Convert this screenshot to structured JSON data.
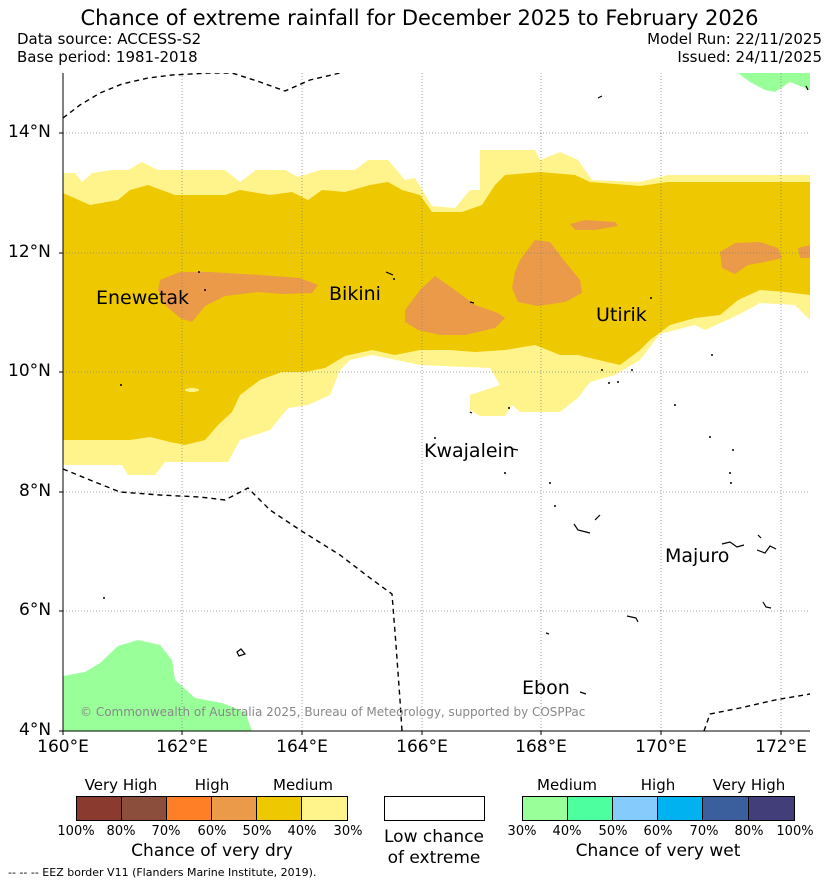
{
  "header": {
    "title": "Chance of extreme rainfall for December 2025 to February 2026",
    "data_source": "Data source: ACCESS-S2",
    "base_period": "Base period: 1981-2018",
    "model_run": "Model Run: 22/11/2025",
    "issued": "Issued: 24/11/2025"
  },
  "map": {
    "lat_ticks": [
      "14°N",
      "12°N",
      "10°N",
      "8°N",
      "6°N",
      "4°N"
    ],
    "lon_ticks": [
      "160°E",
      "162°E",
      "164°E",
      "166°E",
      "168°E",
      "170°E",
      "172°E"
    ],
    "places": {
      "enewetak": "Enewetak",
      "bikini": "Bikini",
      "utirik": "Utirik",
      "kwajalein": "Kwajalein",
      "majuro": "Majuro",
      "ebon": "Ebon"
    },
    "copyright": "© Commonwealth of Australia 2025, Bureau of Meteorology, supported by COSPPac"
  },
  "legend": {
    "dry": {
      "categories": [
        "Very High",
        "High",
        "Medium"
      ],
      "colors": [
        "#8b3a30",
        "#8b4d3c",
        "#ff7f26",
        "#ea9a49",
        "#eec800",
        "#fff48c"
      ],
      "percent_labels": [
        "100%",
        "80%",
        "70%",
        "60%",
        "50%",
        "40%",
        "30%"
      ],
      "title": "Chance of very dry"
    },
    "low": {
      "line1": "Low chance",
      "line2": "of extreme"
    },
    "wet": {
      "categories": [
        "Medium",
        "High",
        "Very High"
      ],
      "colors": [
        "#99ff99",
        "#4dff9f",
        "#85ccfc",
        "#00b2f0",
        "#3a5f9c",
        "#423e7a"
      ],
      "percent_labels": [
        "30%",
        "40%",
        "50%",
        "60%",
        "70%",
        "80%",
        "100%"
      ],
      "title": "Chance of very wet"
    },
    "eez_note": "--  --  -- EEZ border V11 (Flanders Marine Institute, 2019)."
  },
  "colors": {
    "dry_medium_light": "#fff48c",
    "dry_medium": "#eec800",
    "dry_high": "#ea9a49",
    "wet_medium": "#99ff99"
  }
}
